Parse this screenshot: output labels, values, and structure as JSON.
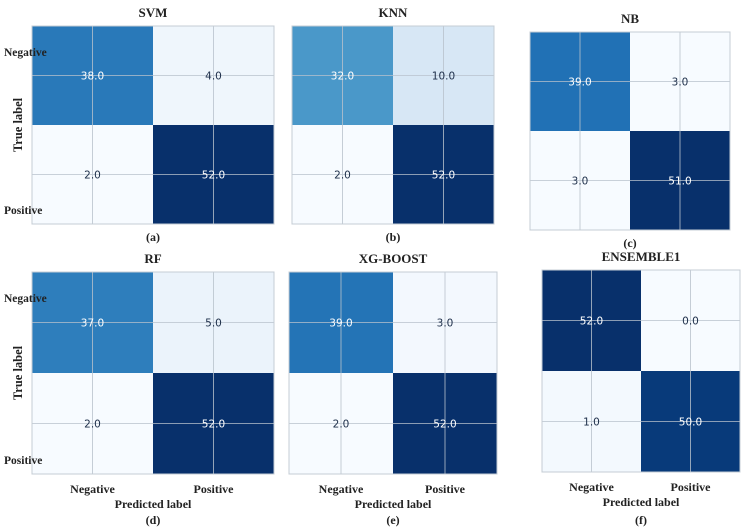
{
  "chart_data": [
    {
      "type": "heatmap",
      "title": "SVM",
      "caption": "(a)",
      "matrix": [
        [
          38.0,
          4.0
        ],
        [
          2.0,
          52.0
        ]
      ],
      "row_labels": [
        "Negative",
        "Positive"
      ],
      "col_labels": [],
      "ylabel": "True label",
      "xlabel": "",
      "colormap": "Blues"
    },
    {
      "type": "heatmap",
      "title": "KNN",
      "caption": "(b)",
      "matrix": [
        [
          32.0,
          10.0
        ],
        [
          2.0,
          52.0
        ]
      ],
      "row_labels": [],
      "col_labels": [],
      "ylabel": "",
      "xlabel": "",
      "colormap": "Blues"
    },
    {
      "type": "heatmap",
      "title": "NB",
      "caption": "(c)",
      "matrix": [
        [
          39.0,
          3.0
        ],
        [
          3.0,
          51.0
        ]
      ],
      "row_labels": [],
      "col_labels": [],
      "ylabel": "",
      "xlabel": "",
      "colormap": "Blues"
    },
    {
      "type": "heatmap",
      "title": "RF",
      "caption": "(d)",
      "matrix": [
        [
          37.0,
          5.0
        ],
        [
          2.0,
          52.0
        ]
      ],
      "row_labels": [
        "Negative",
        "Positive"
      ],
      "col_labels": [
        "Negative",
        "Positive"
      ],
      "ylabel": "True label",
      "xlabel": "Predicted label",
      "colormap": "Blues"
    },
    {
      "type": "heatmap",
      "title": "XG-BOOST",
      "caption": "(e)",
      "matrix": [
        [
          39.0,
          3.0
        ],
        [
          2.0,
          52.0
        ]
      ],
      "row_labels": [],
      "col_labels": [
        "Negative",
        "Positive"
      ],
      "ylabel": "",
      "xlabel": "Predicted label",
      "colormap": "Blues"
    },
    {
      "type": "heatmap",
      "title": "ENSEMBLE1",
      "caption": "(f)",
      "matrix": [
        [
          52.0,
          0.0
        ],
        [
          1.0,
          50.0
        ]
      ],
      "row_labels": [],
      "col_labels": [
        "Negative",
        "Positive"
      ],
      "ylabel": "",
      "xlabel": "Predicted label",
      "colormap": "Blues"
    }
  ]
}
